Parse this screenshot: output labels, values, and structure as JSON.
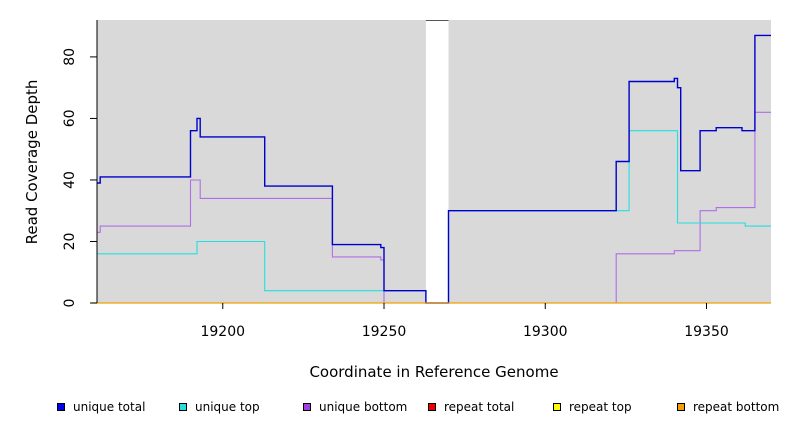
{
  "chart_data": {
    "type": "line",
    "title": "",
    "xlabel": "Coordinate in Reference Genome",
    "ylabel": "Read Coverage Depth",
    "xlim": [
      19161,
      19370
    ],
    "ylim": [
      0,
      92
    ],
    "xticks": [
      19200,
      19250,
      19300,
      19350
    ],
    "yticks": [
      0,
      20,
      40,
      60,
      80
    ],
    "grid": false,
    "background": "#d9d9d9",
    "gap_region": [
      19263,
      19270
    ],
    "legend_position": "bottom",
    "series": [
      {
        "name": "unique total",
        "color": "#0000cc",
        "points": [
          [
            19161,
            39
          ],
          [
            19162,
            41
          ],
          [
            19190,
            56
          ],
          [
            19192,
            60
          ],
          [
            19193,
            54
          ],
          [
            19213,
            38
          ],
          [
            19234,
            19
          ],
          [
            19249,
            18
          ],
          [
            19250,
            4
          ],
          [
            19263,
            0
          ],
          [
            19270,
            30
          ],
          [
            19322,
            46
          ],
          [
            19326,
            72
          ],
          [
            19340,
            73
          ],
          [
            19341,
            70
          ],
          [
            19342,
            43
          ],
          [
            19348,
            56
          ],
          [
            19353,
            57
          ],
          [
            19361,
            56
          ],
          [
            19365,
            87
          ],
          [
            19370,
            87
          ]
        ]
      },
      {
        "name": "unique top",
        "color": "#22e0e0",
        "points": [
          [
            19161,
            16
          ],
          [
            19192,
            20
          ],
          [
            19213,
            4
          ],
          [
            19250,
            4
          ],
          [
            19263,
            0
          ],
          [
            19270,
            30
          ],
          [
            19322,
            30
          ],
          [
            19326,
            56
          ],
          [
            19341,
            26
          ],
          [
            19362,
            25
          ],
          [
            19370,
            25
          ]
        ]
      },
      {
        "name": "unique bottom",
        "color": "#b06ee6",
        "points": [
          [
            19161,
            23
          ],
          [
            19162,
            25
          ],
          [
            19190,
            40
          ],
          [
            19193,
            34
          ],
          [
            19234,
            15
          ],
          [
            19249,
            14
          ],
          [
            19250,
            0
          ],
          [
            19322,
            16
          ],
          [
            19340,
            17
          ],
          [
            19348,
            30
          ],
          [
            19353,
            31
          ],
          [
            19365,
            62
          ],
          [
            19370,
            62
          ]
        ]
      },
      {
        "name": "repeat total",
        "color": "#dd0000",
        "points": [
          [
            19161,
            0
          ],
          [
            19370,
            0
          ]
        ]
      },
      {
        "name": "repeat top",
        "color": "#eeee00",
        "points": [
          [
            19161,
            0
          ],
          [
            19370,
            0
          ]
        ]
      },
      {
        "name": "repeat bottom",
        "color": "#f0a000",
        "points": [
          [
            19161,
            0
          ],
          [
            19370,
            0
          ]
        ]
      }
    ]
  },
  "legend": [
    {
      "label": "unique total",
      "color": "#0000ee"
    },
    {
      "label": "unique top",
      "color": "#22e0e0"
    },
    {
      "label": "unique bottom",
      "color": "#a040e0"
    },
    {
      "label": "repeat total",
      "color": "#ee0000"
    },
    {
      "label": "repeat top",
      "color": "#ffff00"
    },
    {
      "label": "repeat bottom",
      "color": "#f0a000"
    }
  ]
}
